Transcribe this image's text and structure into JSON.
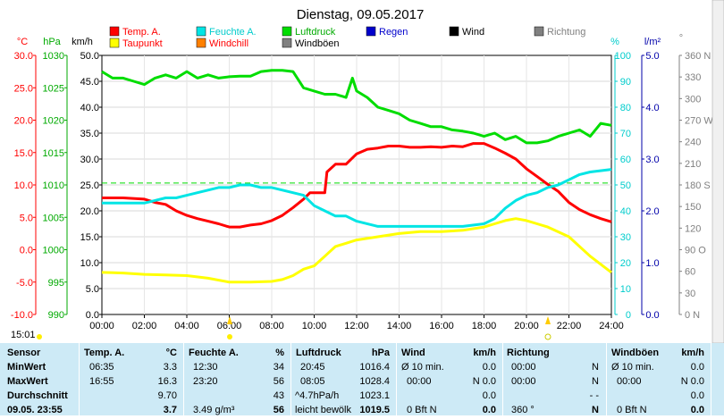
{
  "chart_data": {
    "type": "line",
    "title": "Dienstag, 09.05.2017",
    "x_ticks": [
      "00:00",
      "02:00",
      "04:00",
      "06:00",
      "08:00",
      "10:00",
      "12:00",
      "14:00",
      "16:00",
      "18:00",
      "20:00",
      "22:00",
      "24:00"
    ],
    "xlim": [
      0,
      24
    ],
    "axes": {
      "temp": {
        "unit": "°C",
        "ticks": [
          "30.0",
          "25.0",
          "20.0",
          "15.0",
          "10.0",
          "5.0",
          "0.0",
          "-5.0",
          "-10.0"
        ],
        "range": [
          -10,
          30
        ],
        "color": "#ff0000"
      },
      "pressure": {
        "unit": "hPa",
        "ticks": [
          "1030",
          "1025",
          "1020",
          "1015",
          "1010",
          "1005",
          "1000",
          "995",
          "990"
        ],
        "range": [
          990,
          1030
        ],
        "color": "#00cc00"
      },
      "wind": {
        "unit": "km/h",
        "ticks": [
          "50.0",
          "45.0",
          "40.0",
          "35.0",
          "30.0",
          "25.0",
          "20.0",
          "15.0",
          "10.0",
          "5.0",
          "0.0"
        ],
        "range": [
          0,
          50
        ],
        "color": "#000000"
      },
      "humidity": {
        "unit": "%",
        "ticks": [
          "100",
          "90",
          "80",
          "70",
          "60",
          "50",
          "40",
          "30",
          "20",
          "10",
          "0"
        ],
        "range": [
          0,
          100
        ],
        "color": "#00cccc"
      },
      "rain": {
        "unit": "l/m²",
        "ticks": [
          "5.0",
          "4.0",
          "3.0",
          "2.0",
          "1.0",
          "0.0"
        ],
        "range": [
          0,
          5
        ],
        "color": "#0000aa"
      },
      "direction": {
        "unit": "°",
        "ticks": [
          "360 N",
          "330",
          "300",
          "270 W",
          "240",
          "210",
          "180 S",
          "150",
          "120",
          "90 O",
          "60",
          "30",
          "0 N"
        ],
        "range": [
          0,
          360
        ],
        "color": "#808080"
      }
    },
    "legend": [
      {
        "name": "Temp. A.",
        "color": "#ff0000"
      },
      {
        "name": "Feuchte A.",
        "color": "#00e5e5"
      },
      {
        "name": "Luftdruck",
        "color": "#00dd00"
      },
      {
        "name": "Regen",
        "color": "#0000cc"
      },
      {
        "name": "Wind",
        "color": "#000000"
      },
      {
        "name": "Richtung",
        "color": "#808080"
      },
      {
        "name": "Taupunkt",
        "color": "#ffff00"
      },
      {
        "name": "Windchill",
        "color": "#ff8000"
      },
      {
        "name": "Windböen",
        "color": "#808080"
      }
    ],
    "series": [
      {
        "name": "Temp. A.",
        "axis": "temp",
        "color": "#ff0000",
        "x": [
          0,
          1,
          2,
          2.5,
          3,
          3.5,
          4,
          4.5,
          5,
          5.5,
          6,
          6.5,
          7,
          7.5,
          8,
          8.5,
          9,
          9.5,
          9.8,
          10,
          10.5,
          10.6,
          11,
          11.5,
          12,
          12.5,
          13,
          13.5,
          14,
          14.5,
          15,
          15.5,
          16,
          16.5,
          17,
          17.5,
          18,
          18.5,
          19,
          19.5,
          20,
          20.5,
          21,
          21.5,
          22,
          22.5,
          23,
          23.5,
          24
        ],
        "y": [
          8.0,
          8.0,
          7.8,
          7.3,
          7.0,
          6.0,
          5.3,
          4.8,
          4.4,
          4.0,
          3.5,
          3.5,
          3.8,
          4.0,
          4.5,
          5.3,
          6.5,
          7.8,
          8.8,
          8.8,
          8.8,
          12.0,
          13.2,
          13.2,
          14.8,
          15.5,
          15.7,
          16.0,
          16.0,
          15.8,
          15.8,
          15.9,
          15.8,
          16.0,
          15.9,
          16.4,
          16.4,
          15.7,
          14.9,
          14.0,
          12.5,
          11.3,
          10.1,
          9.0,
          7.3,
          6.2,
          5.4,
          4.8,
          4.3
        ]
      },
      {
        "name": "Feuchte A.",
        "axis": "humidity",
        "color": "#00e5e5",
        "x": [
          0,
          1,
          2,
          2.5,
          3,
          3.5,
          4,
          4.5,
          5,
          5.5,
          6,
          6.5,
          7,
          7.5,
          8,
          8.5,
          9,
          9.5,
          10,
          10.5,
          11,
          11.5,
          12,
          13,
          14,
          15,
          16,
          17,
          18,
          18.5,
          19,
          19.5,
          20,
          20.5,
          21,
          21.5,
          22,
          22.5,
          23,
          24
        ],
        "y": [
          43,
          43,
          43,
          44,
          45,
          45,
          46,
          47,
          48,
          49,
          49,
          50,
          50,
          49,
          49,
          48,
          47,
          46,
          42,
          40,
          38,
          38,
          36,
          34,
          34,
          34,
          34,
          34,
          35,
          37,
          41,
          44,
          46,
          47,
          49,
          50,
          52,
          54,
          55,
          56
        ]
      },
      {
        "name": "Luftdruck",
        "axis": "pressure",
        "color": "#00dd00",
        "x": [
          0,
          0.5,
          1,
          1.5,
          2,
          2.5,
          3,
          3.5,
          4,
          4.5,
          5,
          5.5,
          6,
          6.5,
          7,
          7.5,
          8,
          8.5,
          9,
          9.5,
          10,
          10.5,
          11,
          11.5,
          11.8,
          12,
          12.5,
          13,
          13.5,
          14,
          14.5,
          15,
          15.5,
          16,
          16.5,
          17,
          17.5,
          18,
          18.5,
          19,
          19.5,
          20,
          20.5,
          21,
          21.5,
          22,
          22.5,
          23,
          23.5,
          24
        ],
        "y": [
          1027.5,
          1026.5,
          1026.5,
          1026.0,
          1025.5,
          1026.5,
          1027.0,
          1026.5,
          1027.5,
          1026.5,
          1027.0,
          1026.5,
          1026.7,
          1026.8,
          1026.8,
          1027.5,
          1027.7,
          1027.7,
          1027.5,
          1025.0,
          1024.5,
          1024.0,
          1024.0,
          1023.5,
          1026.5,
          1024.5,
          1023.5,
          1022.0,
          1021.5,
          1021.0,
          1020.0,
          1019.5,
          1019.0,
          1019.0,
          1018.5,
          1018.3,
          1018.0,
          1017.5,
          1018.0,
          1017.0,
          1017.5,
          1016.5,
          1016.5,
          1016.8,
          1017.5,
          1018.0,
          1018.5,
          1017.5,
          1019.5,
          1019.2
        ]
      },
      {
        "name": "Taupunkt",
        "axis": "temp",
        "color": "#ffff00",
        "x": [
          0,
          1,
          2,
          3,
          4,
          5,
          6,
          7,
          8,
          8.5,
          9,
          9.5,
          10,
          10.5,
          11,
          11.5,
          12,
          13,
          14,
          15,
          16,
          17,
          18,
          18.5,
          19,
          19.5,
          20,
          20.5,
          21,
          22,
          23,
          24
        ],
        "y": [
          -3.5,
          -3.6,
          -3.8,
          -3.9,
          -4.0,
          -4.4,
          -5.0,
          -5.0,
          -4.9,
          -4.6,
          -4.0,
          -3.0,
          -2.5,
          -1.0,
          0.5,
          1.0,
          1.5,
          2.0,
          2.5,
          2.8,
          2.8,
          3.0,
          3.5,
          4.0,
          4.5,
          4.8,
          4.5,
          4.0,
          3.5,
          2.0,
          -1.0,
          -3.5
        ]
      }
    ],
    "reference_line": {
      "axis": "temp",
      "value": 10.3,
      "color": "#00dd00"
    }
  },
  "time_label": "15:01",
  "stats": {
    "headers": {
      "sensor": "Sensor",
      "temp": "Temp. A.",
      "temp_unit": "°C",
      "hum": "Feuchte A.",
      "hum_unit": "%",
      "press": "Luftdruck",
      "press_unit": "hPa",
      "wind": "Wind",
      "wind_unit": "km/h",
      "dir": "Richtung",
      "gust": "Windböen",
      "gust_unit": "km/h"
    },
    "rows": [
      {
        "label": "MinWert",
        "temp_t": "06:35",
        "temp_v": "3.3",
        "hum_t": "12:30",
        "hum_v": "34",
        "press_t": "20:45",
        "press_v": "1016.4",
        "wind_t": "Ø 10 min.",
        "wind_v": "0.0",
        "dir_t": "00:00",
        "dir_v": "N",
        "gust_t": "Ø 10 min.",
        "gust_v": "0.0"
      },
      {
        "label": "MaxWert",
        "temp_t": "16:55",
        "temp_v": "16.3",
        "hum_t": "23:20",
        "hum_v": "56",
        "press_t": "08:05",
        "press_v": "1028.4",
        "wind_t": "00:00",
        "wind_v": "N 0.0",
        "dir_t": "00:00",
        "dir_v": "N",
        "gust_t": "00:00",
        "gust_v": "N 0.0"
      },
      {
        "label": "Durchschnitt",
        "temp_t": "",
        "temp_v": "9.70",
        "hum_t": "",
        "hum_v": "43",
        "press_t": "^4.7hPa/h",
        "press_v": "1023.1",
        "wind_t": "",
        "wind_v": "0.0",
        "dir_t": "",
        "dir_v": "- -",
        "gust_t": "",
        "gust_v": "0.0"
      },
      {
        "label": "09.05. 23:55",
        "temp_t": "",
        "temp_v": "3.7",
        "hum_t": "3.49 g/m³",
        "hum_v": "56",
        "press_t": "leicht bewölk",
        "press_v": "1019.5",
        "wind_t": "0 Bft N",
        "wind_v": "0.0",
        "dir_t": "360 °",
        "dir_v": "N",
        "gust_t": "0 Bft N",
        "gust_v": "0.0"
      }
    ]
  }
}
